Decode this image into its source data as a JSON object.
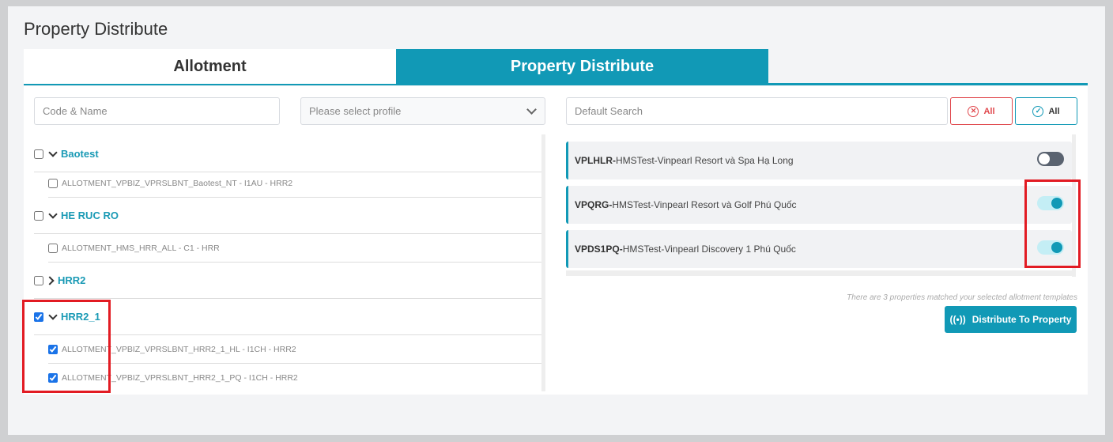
{
  "page_title": "Property Distribute",
  "tabs": [
    {
      "label": "Allotment",
      "active": false
    },
    {
      "label": "Property Distribute",
      "active": true
    }
  ],
  "left": {
    "search_placeholder": "Code & Name",
    "profile_placeholder": "Please select profile",
    "groups": [
      {
        "label": "Baotest",
        "checked": false,
        "expanded": true,
        "items": [
          {
            "label": "ALLOTMENT_VPBIZ_VPRSLBNT_Baotest_NT - I1AU - HRR2",
            "checked": false
          }
        ]
      },
      {
        "label": "HE RUC RO",
        "checked": false,
        "expanded": true,
        "items": [
          {
            "label": "ALLOTMENT_HMS_HRR_ALL - C1 - HRR",
            "checked": false
          }
        ]
      },
      {
        "label": "HRR2",
        "checked": false,
        "expanded": false,
        "items": []
      },
      {
        "label": "HRR2_1",
        "checked": true,
        "expanded": true,
        "items": [
          {
            "label": "ALLOTMENT_VPBIZ_VPRSLBNT_HRR2_1_HL - I1CH - HRR2",
            "checked": true
          },
          {
            "label": "ALLOTMENT_VPBIZ_VPRSLBNT_HRR2_1_PQ - I1CH - HRR2",
            "checked": true
          }
        ]
      }
    ]
  },
  "right": {
    "search_placeholder": "Default Search",
    "deselect_all_label": "All",
    "select_all_label": "All",
    "properties": [
      {
        "code": "VPLHLR-",
        "name": " HMSTest-Vinpearl Resort và Spa Hạ Long",
        "enabled": false
      },
      {
        "code": "VPQRG-",
        "name": " HMSTest-Vinpearl Resort và Golf Phú Quốc",
        "enabled": true
      },
      {
        "code": "VPDS1PQ-",
        "name": " HMSTest-Vinpearl Discovery 1 Phú Quốc",
        "enabled": true
      }
    ],
    "match_note": "There are 3 properties matched your selected allotment templates",
    "distribute_label": "Distribute To Property"
  },
  "colors": {
    "accent": "#1199b6",
    "danger": "#e0474c",
    "highlight": "#e21b23"
  }
}
